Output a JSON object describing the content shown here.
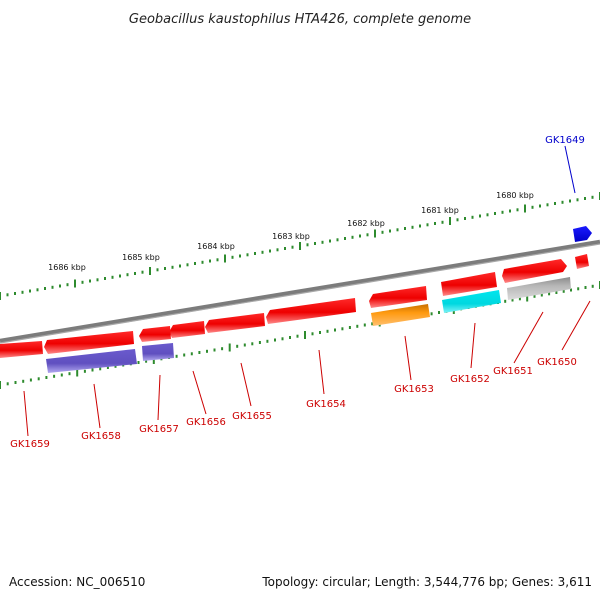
{
  "title": "Geobacillus kaustophilus HTA426, complete genome",
  "footer": {
    "accession": "Accession: NC_006510",
    "summary": "Topology: circular; Length: 3,544,776 bp; Genes: 3,611"
  },
  "scale_labels": [
    "1686 kbp",
    "1685 kbp",
    "1684 kbp",
    "1683 kbp",
    "1682 kbp",
    "1681 kbp",
    "1680 kbp"
  ],
  "genes": [
    {
      "name": "GK1649",
      "color": "#0000cc"
    },
    {
      "name": "GK1650",
      "color": "#cc0000"
    },
    {
      "name": "GK1651",
      "color": "#cc0000"
    },
    {
      "name": "GK1652",
      "color": "#cc0000"
    },
    {
      "name": "GK1653",
      "color": "#cc0000"
    },
    {
      "name": "GK1654",
      "color": "#cc0000"
    },
    {
      "name": "GK1655",
      "color": "#cc0000"
    },
    {
      "name": "GK1656",
      "color": "#cc0000"
    },
    {
      "name": "GK1657",
      "color": "#cc0000"
    },
    {
      "name": "GK1658",
      "color": "#cc0000"
    },
    {
      "name": "GK1659",
      "color": "#cc0000"
    }
  ],
  "colors": {
    "cds_forward": "#ff0000",
    "cds_reverse": "#ff0000",
    "highlight_gene": "#0000ff",
    "trna": "#6a5acd",
    "rrna": "#ff8c00",
    "misc_cyan": "#00e5ee",
    "misc_gray": "#b0b0b0",
    "backbone": "#808080",
    "tick": "#2e8b2e"
  }
}
